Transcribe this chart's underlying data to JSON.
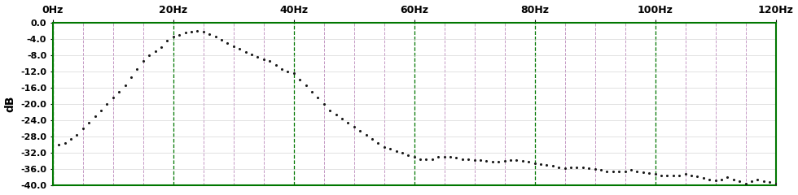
{
  "title": "",
  "ylabel": "dB",
  "xlabel": "",
  "xlim": [
    0,
    120
  ],
  "ylim": [
    -40.0,
    0.0
  ],
  "xticks": [
    0,
    20,
    40,
    60,
    80,
    100,
    120
  ],
  "yticks": [
    0.0,
    -4.0,
    -8.0,
    -12.0,
    -16.0,
    -20.0,
    -24.0,
    -28.0,
    -32.0,
    -36.0,
    -40.0
  ],
  "xtick_labels": [
    "0Hz",
    "20Hz",
    "40Hz",
    "60Hz",
    "80Hz",
    "100Hz",
    "120Hz"
  ],
  "dot_color": "#1a1a1a",
  "dot_size": 5,
  "background_color": "#ffffff",
  "grid_color_major": "#007700",
  "grid_color_minor": "#bb88bb",
  "border_color": "#007700",
  "minor_grid_positions": [
    5,
    10,
    15,
    25,
    30,
    35,
    45,
    50,
    55,
    65,
    70,
    75,
    85,
    90,
    95,
    105,
    110,
    115
  ],
  "data_x": [
    1,
    2,
    3,
    4,
    5,
    6,
    7,
    8,
    9,
    10,
    11,
    12,
    13,
    14,
    15,
    16,
    17,
    18,
    19,
    20,
    21,
    22,
    23,
    24,
    25,
    26,
    27,
    28,
    29,
    30,
    31,
    32,
    33,
    34,
    35,
    36,
    37,
    38,
    39,
    40,
    41,
    42,
    43,
    44,
    45,
    46,
    47,
    48,
    49,
    50,
    51,
    52,
    53,
    54,
    55,
    56,
    57,
    58,
    59,
    60,
    61,
    62,
    63,
    64,
    65,
    66,
    67,
    68,
    69,
    70,
    71,
    72,
    73,
    74,
    75,
    76,
    77,
    78,
    79,
    80,
    81,
    82,
    83,
    84,
    85,
    86,
    87,
    88,
    89,
    90,
    91,
    92,
    93,
    94,
    95,
    96,
    97,
    98,
    99,
    100,
    101,
    102,
    103,
    104,
    105,
    106,
    107,
    108,
    109,
    110,
    111,
    112,
    113,
    114,
    115,
    116,
    117,
    118,
    119,
    120
  ],
  "data_y": [
    -30.0,
    -29.5,
    -28.5,
    -27.5,
    -26.0,
    -24.5,
    -23.0,
    -21.5,
    -20.0,
    -18.5,
    -17.0,
    -15.5,
    -13.5,
    -11.5,
    -9.5,
    -8.0,
    -7.0,
    -6.0,
    -4.5,
    -3.5,
    -3.0,
    -2.5,
    -2.2,
    -2.0,
    -2.2,
    -2.8,
    -3.5,
    -4.2,
    -5.0,
    -5.8,
    -6.5,
    -7.2,
    -7.8,
    -8.5,
    -9.0,
    -9.5,
    -10.5,
    -11.5,
    -12.0,
    -12.5,
    -14.0,
    -15.5,
    -17.0,
    -18.5,
    -20.0,
    -21.5,
    -22.5,
    -23.5,
    -24.5,
    -25.5,
    -26.5,
    -27.5,
    -28.5,
    -29.5,
    -30.5,
    -31.0,
    -31.5,
    -32.0,
    -32.5,
    -33.0,
    -33.5,
    -33.5,
    -33.5,
    -33.0,
    -33.0,
    -33.0,
    -33.2,
    -33.5,
    -33.5,
    -33.8,
    -33.8,
    -34.0,
    -34.2,
    -34.2,
    -34.0,
    -33.8,
    -33.8,
    -34.0,
    -34.2,
    -34.5,
    -34.8,
    -35.0,
    -35.2,
    -35.5,
    -35.8,
    -35.5,
    -35.5,
    -35.5,
    -35.8,
    -36.0,
    -36.2,
    -36.5,
    -36.5,
    -36.5,
    -36.5,
    -36.2,
    -36.5,
    -36.8,
    -37.0,
    -37.2,
    -37.5,
    -37.5,
    -37.5,
    -37.5,
    -37.2,
    -37.5,
    -37.8,
    -38.2,
    -38.5,
    -38.8,
    -38.5,
    -38.0,
    -38.5,
    -39.0,
    -39.5,
    -39.0,
    -38.5,
    -39.0,
    -39.2,
    -39.5
  ]
}
